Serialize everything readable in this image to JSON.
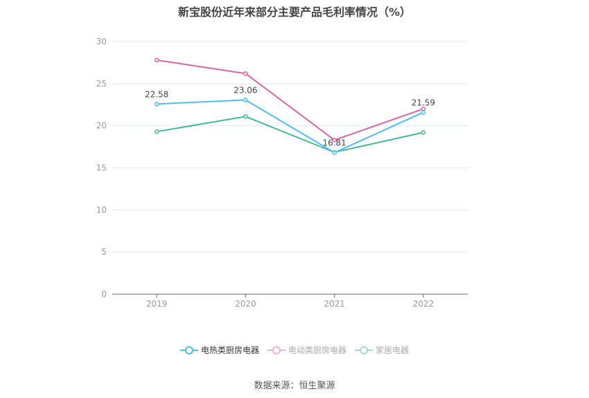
{
  "chart_data": {
    "type": "line",
    "title": "新宝股份近年来部分主要产品毛利率情况（%）",
    "categories": [
      "2019",
      "2020",
      "2021",
      "2022"
    ],
    "ylim": [
      0,
      30
    ],
    "yticks": [
      "0",
      "5",
      "10",
      "15",
      "20",
      "25",
      "30"
    ],
    "grid": true,
    "legend_position": "bottom",
    "series": [
      {
        "name": "电热类厨房电器",
        "values": [
          22.58,
          23.06,
          16.81,
          21.59
        ],
        "color": "#4fbdf2",
        "labels": [
          "22.58",
          "23.06",
          "16.81",
          "21.59"
        ],
        "active": true
      },
      {
        "name": "电动类厨房电器",
        "values": [
          27.8,
          26.2,
          18.3,
          22.0
        ],
        "color": "#d864a8",
        "active": false
      },
      {
        "name": "家居电器",
        "values": [
          19.3,
          21.1,
          16.85,
          19.2
        ],
        "color": "#45b797",
        "active": false
      }
    ]
  },
  "source": "数据来源：恒生聚源"
}
